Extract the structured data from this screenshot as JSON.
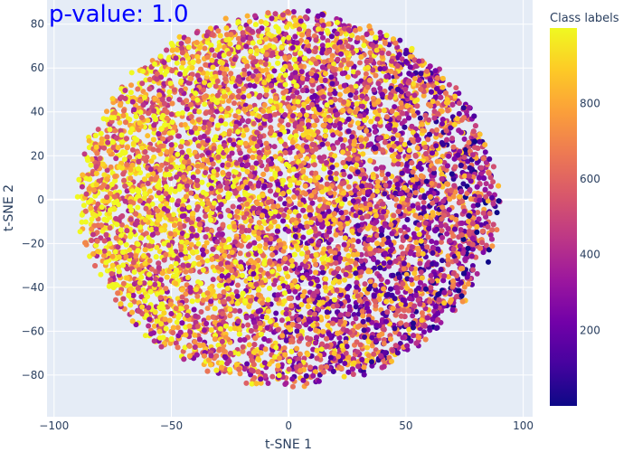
{
  "chart_data": {
    "type": "scatter",
    "title": "p-value: 1.0",
    "xlabel": "t-SNE 1",
    "ylabel": "t-SNE 2",
    "xlim": [
      -103,
      104
    ],
    "ylim": [
      -99,
      91
    ],
    "xticks": [
      -100,
      -50,
      0,
      50,
      100
    ],
    "xtick_labels": [
      "−100",
      "−50",
      "0",
      "50",
      "100"
    ],
    "yticks": [
      -80,
      -60,
      -40,
      -20,
      0,
      20,
      40,
      60,
      80
    ],
    "ytick_labels": [
      "−80",
      "−60",
      "−40",
      "−20",
      "0",
      "20",
      "40",
      "60",
      "80"
    ],
    "grid": true,
    "colorscale": "plasma",
    "colorbar": {
      "title": "Class labels",
      "range": [
        0,
        999
      ],
      "ticks": [
        200,
        400,
        600,
        800
      ],
      "tick_labels": [
        "200",
        "400",
        "600",
        "800"
      ]
    },
    "point_cloud": {
      "center": [
        0,
        0
      ],
      "x_extent": [
        -91,
        91
      ],
      "y_extent": [
        -87,
        87
      ],
      "approx_points": 10000,
      "value_range": [
        0,
        999
      ]
    },
    "title_color": "#0000ff",
    "plot_background": "#e5ecf6"
  }
}
